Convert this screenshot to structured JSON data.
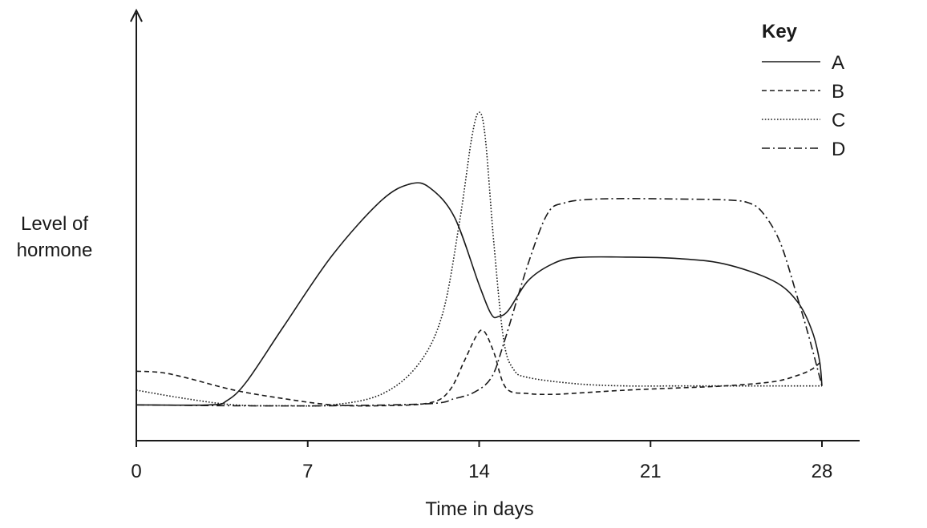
{
  "chart_data": {
    "type": "line",
    "title": "",
    "xlabel": "Time in days",
    "ylabel_lines": [
      "Level of",
      "hormone"
    ],
    "xlim": [
      0,
      29.5
    ],
    "ylim": [
      0,
      100
    ],
    "xticks": [
      0,
      7,
      14,
      21,
      28
    ],
    "xtick_labels": [
      "0",
      "7",
      "14",
      "21",
      "28"
    ],
    "y_tick_labels_shown": false,
    "grid": false,
    "legend": {
      "title": "Key",
      "placement": "top-right"
    },
    "series": [
      {
        "name": "A",
        "dash": "solid",
        "x": [
          0,
          3,
          3.7,
          4.5,
          6,
          8,
          10,
          11.2,
          12,
          13,
          14,
          14.5,
          14.8,
          15.2,
          16,
          17,
          18,
          20,
          22,
          24,
          26,
          27,
          27.6,
          27.9,
          28
        ],
        "y": [
          6.5,
          6.5,
          7.5,
          12,
          25,
          42,
          55,
          59,
          58,
          51,
          35,
          28,
          27.5,
          29,
          36,
          40,
          41.5,
          41.6,
          41.3,
          40,
          36,
          31,
          24,
          17,
          11
        ]
      },
      {
        "name": "B",
        "dash": "dashed",
        "x": [
          0,
          1,
          2,
          4,
          6,
          8,
          10,
          12,
          12.8,
          13.4,
          13.9,
          14.2,
          14.6,
          15.1,
          16,
          17,
          18,
          20,
          22,
          24,
          26,
          27,
          27.6,
          28
        ],
        "y": [
          14.5,
          14.2,
          13,
          10,
          8,
          6.5,
          6.3,
          7,
          10,
          17,
          23,
          24,
          19,
          10.5,
          9.2,
          9,
          9.3,
          10,
          10.5,
          11,
          12,
          13.5,
          15,
          17
        ]
      },
      {
        "name": "C",
        "dash": "dotted",
        "x": [
          0,
          2,
          4,
          6,
          8,
          10,
          11.5,
          12.5,
          13.2,
          13.7,
          14,
          14.25,
          14.6,
          15,
          15.4,
          16,
          18,
          20,
          22,
          24,
          26,
          28
        ],
        "y": [
          10,
          8,
          6.5,
          6.3,
          6.5,
          9,
          16,
          28,
          50,
          70,
          76,
          70,
          45,
          22,
          15,
          13,
          11.5,
          11,
          11,
          11,
          11,
          11
        ]
      },
      {
        "name": "D",
        "dash": "dash-dot",
        "x": [
          0,
          4,
          8,
          12,
          13,
          13.8,
          14.5,
          15,
          16,
          16.8,
          17.5,
          18.5,
          20,
          22,
          24,
          25,
          25.6,
          26.3,
          27,
          27.5,
          28
        ],
        "y": [
          6.5,
          6.3,
          6.3,
          6.8,
          8,
          9.5,
          13,
          21,
          40,
          52,
          54.5,
          55.3,
          55.5,
          55.4,
          55.2,
          54.5,
          52,
          45,
          32,
          22,
          11
        ]
      }
    ]
  }
}
